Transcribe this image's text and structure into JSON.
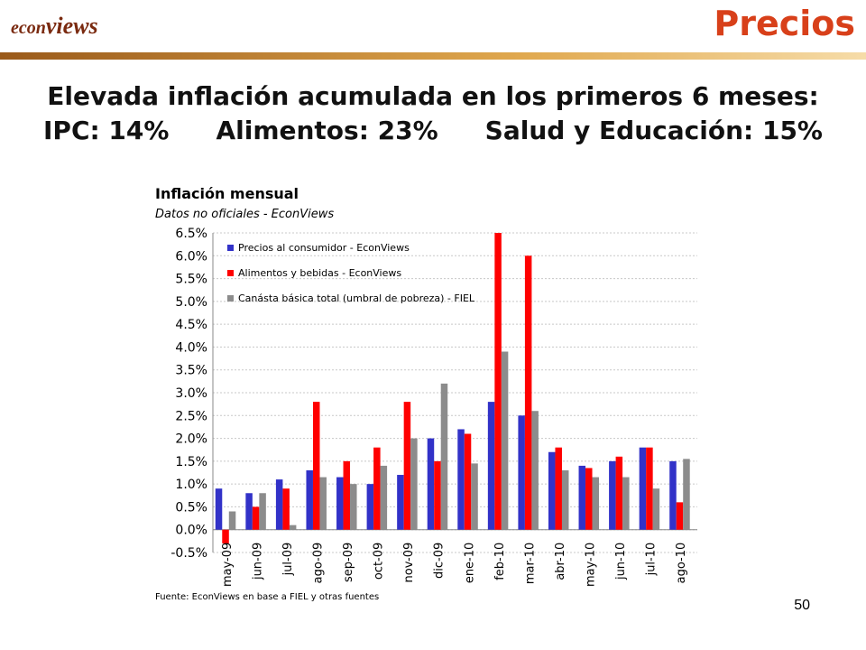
{
  "logo": {
    "part1": "econ",
    "part2": "views"
  },
  "section_title": "Precios",
  "headline": {
    "line1": "Elevada inflación acumulada en los primeros 6 meses:",
    "line2a": "IPC: 14%",
    "line2b": "Alimentos: 23%",
    "line2c": "Salud y Educación: 15%"
  },
  "page_number": "50",
  "colors": {
    "accent": "#d8401a",
    "series1": "#3232c8",
    "series2": "#ff0000",
    "series3": "#8c8c8c"
  },
  "chart_data": {
    "type": "bar",
    "title": "Inflación mensual",
    "subtitle": "Datos no oficiales - EconViews",
    "source": "Fuente: EconViews en base a FIEL y otras fuentes",
    "categories": [
      "may-09",
      "jun-09",
      "jul-09",
      "ago-09",
      "sep-09",
      "oct-09",
      "nov-09",
      "dic-09",
      "ene-10",
      "feb-10",
      "mar-10",
      "abr-10",
      "may-10",
      "jun-10",
      "jul-10",
      "ago-10"
    ],
    "series": [
      {
        "name": "Precios al consumidor - EconViews",
        "color": "#3232c8",
        "values": [
          0.9,
          0.8,
          1.1,
          1.3,
          1.15,
          1.0,
          1.2,
          2.0,
          2.2,
          2.8,
          2.5,
          1.7,
          1.4,
          1.5,
          1.8,
          1.5
        ]
      },
      {
        "name": "Alimentos y bebidas - EconViews",
        "color": "#ff0000",
        "values": [
          -0.3,
          0.5,
          0.9,
          2.8,
          1.5,
          1.8,
          2.8,
          1.5,
          2.1,
          6.5,
          6.0,
          1.8,
          1.35,
          1.6,
          1.8,
          0.6
        ]
      },
      {
        "name": "Canásta básica total (umbral de pobreza) - FIEL",
        "color": "#8c8c8c",
        "values": [
          0.4,
          0.8,
          0.1,
          1.15,
          1.0,
          1.4,
          2.0,
          3.2,
          1.45,
          3.9,
          2.6,
          1.3,
          1.15,
          1.15,
          0.9,
          1.55
        ]
      }
    ],
    "ylim": [
      -0.5,
      6.5
    ],
    "yticks": [
      "-0.5%",
      "0.0%",
      "0.5%",
      "1.0%",
      "1.5%",
      "2.0%",
      "2.5%",
      "3.0%",
      "3.5%",
      "4.0%",
      "4.5%",
      "5.0%",
      "5.5%",
      "6.0%",
      "6.5%"
    ],
    "grid": true,
    "legend_position": "top-left"
  }
}
